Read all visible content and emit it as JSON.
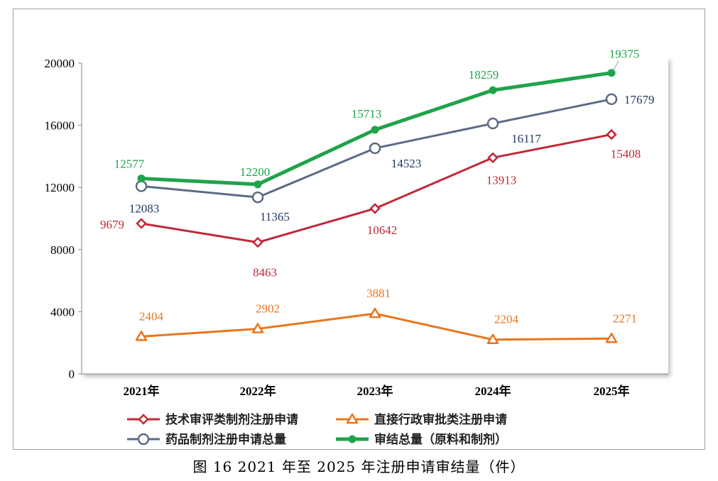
{
  "caption": "图 16   2021 年至 2025 年注册申请审结量（件）",
  "chart_data": {
    "type": "line",
    "categories": [
      "2021年",
      "2022年",
      "2023年",
      "2024年",
      "2025年"
    ],
    "ylim": [
      0,
      20000
    ],
    "yticks": [
      0,
      4000,
      8000,
      12000,
      16000,
      20000
    ],
    "grid": false,
    "legend_position": "bottom",
    "title": "",
    "xlabel": "",
    "ylabel": "",
    "series": [
      {
        "name": "技术审评类制剂注册申请",
        "values": [
          9679,
          8463,
          10642,
          13913,
          15408
        ],
        "color": "#c0283a",
        "marker": "diamond-open"
      },
      {
        "name": "直接行政审批类注册申请",
        "values": [
          2404,
          2902,
          3881,
          2204,
          2271
        ],
        "color": "#e8761f",
        "marker": "triangle-open"
      },
      {
        "name": "药品制剂注册申请总量",
        "values": [
          12083,
          11365,
          14523,
          16117,
          17679
        ],
        "color": "#5a6b85",
        "label_color": "#1f3864",
        "marker": "circle-open"
      },
      {
        "name": "审结总量（原料和制剂）",
        "values": [
          12577,
          12200,
          15713,
          18259,
          19375
        ],
        "color": "#1fa34a",
        "marker": "circle-filled"
      }
    ]
  }
}
